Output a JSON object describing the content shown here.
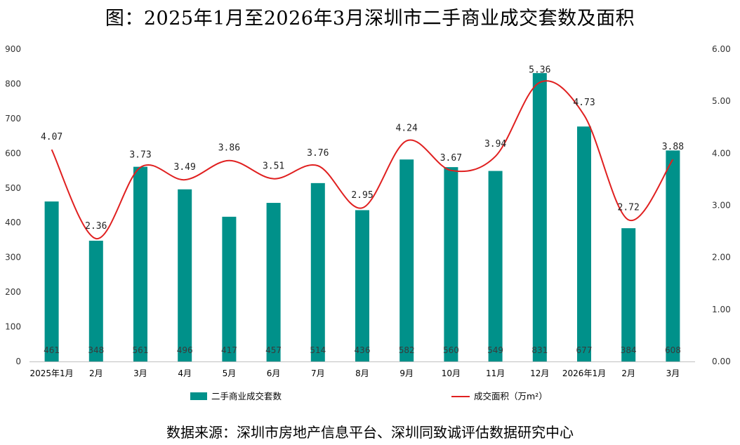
{
  "title": "图：2025年1月至2026年3月深圳市二手商业成交套数及面积",
  "source_note": "数据来源：深圳市房地产信息平台、深圳同致诚评估数据研究中心",
  "colors": {
    "bar": "#00918A",
    "line": "#E02020",
    "axis": "#BFBFBF"
  },
  "chart_data": {
    "type": "bar",
    "title": "图：2025年1月至2026年3月深圳市二手商业成交套数及面积",
    "categories": [
      "2025年1月",
      "2月",
      "3月",
      "4月",
      "5月",
      "6月",
      "7月",
      "8月",
      "9月",
      "10月",
      "11月",
      "12月",
      "2026年1月",
      "2月",
      "3月"
    ],
    "series": [
      {
        "name": "二手商业成交套数",
        "type": "bar",
        "axis": "left",
        "values": [
          461,
          348,
          561,
          496,
          417,
          457,
          514,
          436,
          582,
          560,
          549,
          831,
          677,
          384,
          608
        ]
      },
      {
        "name": "成交面积（万m²）",
        "type": "line",
        "axis": "right",
        "smooth": true,
        "values": [
          4.07,
          2.36,
          3.73,
          3.49,
          3.86,
          3.51,
          3.76,
          2.95,
          4.24,
          3.67,
          3.94,
          5.36,
          4.73,
          2.72,
          3.88
        ]
      }
    ],
    "y_left": {
      "min": 0,
      "max": 900,
      "step": 100,
      "ticks": [
        "0",
        "100",
        "200",
        "300",
        "400",
        "500",
        "600",
        "700",
        "800",
        "900"
      ]
    },
    "y_right": {
      "min": 0,
      "max": 6,
      "step": 1,
      "ticks": [
        "0.00",
        "1.00",
        "2.00",
        "3.00",
        "4.00",
        "5.00",
        "6.00"
      ]
    },
    "bar_labels": [
      "461",
      "348",
      "561",
      "496",
      "417",
      "457",
      "514",
      "436",
      "582",
      "560",
      "549",
      "831",
      "677",
      "384",
      "608"
    ],
    "line_labels": [
      "4.07",
      "2.36",
      "3.73",
      "3.49",
      "3.86",
      "3.51",
      "3.76",
      "2.95",
      "4.24",
      "3.67",
      "3.94",
      "5.36",
      "4.73",
      "2.72",
      "3.88"
    ],
    "legend": [
      {
        "label": "二手商业成交套数",
        "kind": "bar"
      },
      {
        "label": "成交面积（万m²）",
        "kind": "line"
      }
    ],
    "grid": false,
    "legend_position": "bottom"
  }
}
